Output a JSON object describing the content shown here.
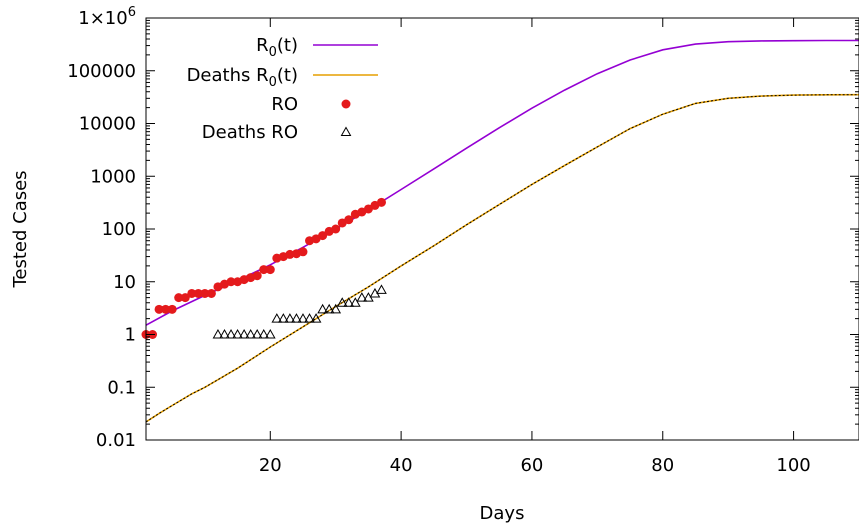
{
  "chart_data": {
    "type": "scatter",
    "title": "",
    "xlabel": "Days",
    "ylabel": "Tested Cases",
    "xlim": [
      1,
      110
    ],
    "ylim": [
      0.01,
      1000000
    ],
    "yscale": "log",
    "xticks": [
      20,
      40,
      60,
      80,
      100
    ],
    "yticks": [
      {
        "value": 0.01,
        "label": "0.01"
      },
      {
        "value": 0.1,
        "label": "0.1"
      },
      {
        "value": 1,
        "label": "1"
      },
      {
        "value": 10,
        "label": "10"
      },
      {
        "value": 100,
        "label": "100"
      },
      {
        "value": 1000,
        "label": "1000"
      },
      {
        "value": 10000,
        "label": "10000"
      },
      {
        "value": 100000,
        "label": "100000"
      },
      {
        "value": 1000000,
        "label": "1×10",
        "label_sup": "6"
      }
    ],
    "legend_placement": "top-left",
    "series": [
      {
        "name": "R",
        "name_sub": "0",
        "name_suffix": "(t)",
        "type": "line",
        "color": "#9400d3",
        "x": [
          1,
          5,
          10,
          15,
          20,
          25,
          30,
          35,
          40,
          45,
          50,
          55,
          60,
          65,
          70,
          75,
          80,
          85,
          90,
          95,
          100,
          105,
          110
        ],
        "y": [
          1.5,
          2.8,
          5.5,
          10.5,
          21,
          45,
          100,
          230,
          560,
          1380,
          3400,
          8300,
          19500,
          43000,
          88000,
          160000,
          250000,
          320000,
          355000,
          368000,
          372000,
          374000,
          375000
        ]
      },
      {
        "name": "Deaths R",
        "name_sub": "0",
        "name_suffix": "(t)",
        "type": "line",
        "color": "#e69f00",
        "x": [
          1,
          3,
          5,
          8,
          10,
          15,
          20,
          25,
          30,
          35,
          40,
          45,
          50,
          55,
          60,
          65,
          70,
          75,
          80,
          85,
          90,
          95,
          100,
          105,
          110
        ],
        "y": [
          0.022,
          0.032,
          0.045,
          0.075,
          0.1,
          0.23,
          0.58,
          1.4,
          3.4,
          8,
          20,
          48,
          120,
          290,
          700,
          1600,
          3600,
          8000,
          15000,
          24000,
          30000,
          33000,
          34500,
          35000,
          35200
        ]
      },
      {
        "name": "RO",
        "type": "scatter",
        "marker": "circle",
        "color": "#e41a1c",
        "x": [
          1,
          2,
          3,
          4,
          5,
          6,
          7,
          8,
          9,
          10,
          11,
          12,
          13,
          14,
          15,
          16,
          17,
          18,
          19,
          20,
          21,
          22,
          23,
          24,
          25,
          26,
          27,
          28,
          29,
          30,
          31,
          32,
          33,
          34,
          35,
          36,
          37
        ],
        "y": [
          1,
          1,
          3,
          3,
          3,
          5,
          5,
          6,
          6,
          6,
          6,
          8,
          9,
          10,
          10,
          11,
          12,
          13,
          17,
          17,
          28,
          30,
          33,
          34,
          37,
          60,
          65,
          75,
          90,
          100,
          130,
          150,
          190,
          210,
          240,
          280,
          320
        ]
      },
      {
        "name": "Deaths RO",
        "type": "scatter",
        "marker": "triangle",
        "color": "#000000",
        "x": [
          12,
          13,
          14,
          15,
          16,
          17,
          18,
          19,
          20,
          21,
          22,
          23,
          24,
          25,
          26,
          27,
          28,
          29,
          30,
          31,
          32,
          33,
          34,
          35,
          36,
          37
        ],
        "y": [
          1,
          1,
          1,
          1,
          1,
          1,
          1,
          1,
          1,
          2,
          2,
          2,
          2,
          2,
          2,
          2,
          3,
          3,
          3,
          4,
          4,
          4,
          5,
          5,
          6,
          7
        ]
      }
    ]
  }
}
